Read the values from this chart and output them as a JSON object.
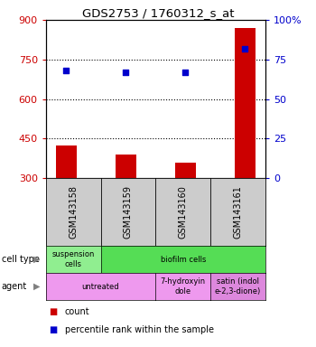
{
  "title": "GDS2753 / 1760312_s_at",
  "samples": [
    "GSM143158",
    "GSM143159",
    "GSM143160",
    "GSM143161"
  ],
  "bar_values": [
    425,
    388,
    360,
    870
  ],
  "scatter_pct": [
    68,
    67,
    67,
    82
  ],
  "bar_bottom": 300,
  "ylim_left": [
    300,
    900
  ],
  "ylim_right": [
    0,
    100
  ],
  "yticks_left": [
    300,
    450,
    600,
    750,
    900
  ],
  "yticks_right": [
    0,
    25,
    50,
    75,
    100
  ],
  "bar_color": "#cc0000",
  "scatter_color": "#0000cc",
  "cell_spans": [
    1,
    3
  ],
  "cell_labels": [
    "suspension\ncells",
    "biofilm cells"
  ],
  "cell_colors": [
    "#90ee90",
    "#55dd55"
  ],
  "agent_spans": [
    2,
    1,
    1
  ],
  "agent_labels": [
    "untreated",
    "7-hydroxyin\ndole",
    "satin (indol\ne-2,3-dione)"
  ],
  "agent_colors": [
    "#ee99ee",
    "#ee99ee",
    "#dd88dd"
  ],
  "legend_count_color": "#cc0000",
  "legend_pct_color": "#0000cc",
  "sample_box_color": "#cccccc",
  "left_tick_color": "#cc0000",
  "right_tick_color": "#0000cc"
}
